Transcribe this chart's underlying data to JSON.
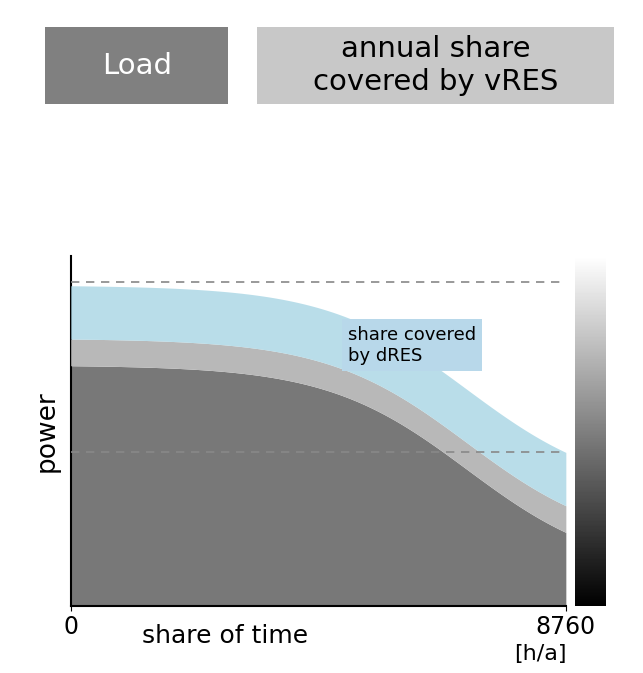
{
  "title_load_label": "Load",
  "title_load_color": "#808080",
  "title_vres_label": "annual share\ncovered by vRES",
  "title_vres_color": "#c8c8c8",
  "title_text_color_load": "#ffffff",
  "title_text_color_vres": "#000000",
  "ylabel": "power",
  "xlabel": "share of time",
  "x_tick_0": "0",
  "x_tick_end": "8760",
  "x_unit": "[h/a]",
  "dres_label": "share covered\nby dRES",
  "dres_box_color": "#b8d8ea",
  "load_color": "#787878",
  "load_light_color": "#b8b8b8",
  "vres_color": "#add8e6",
  "dashed_color": "#888888"
}
